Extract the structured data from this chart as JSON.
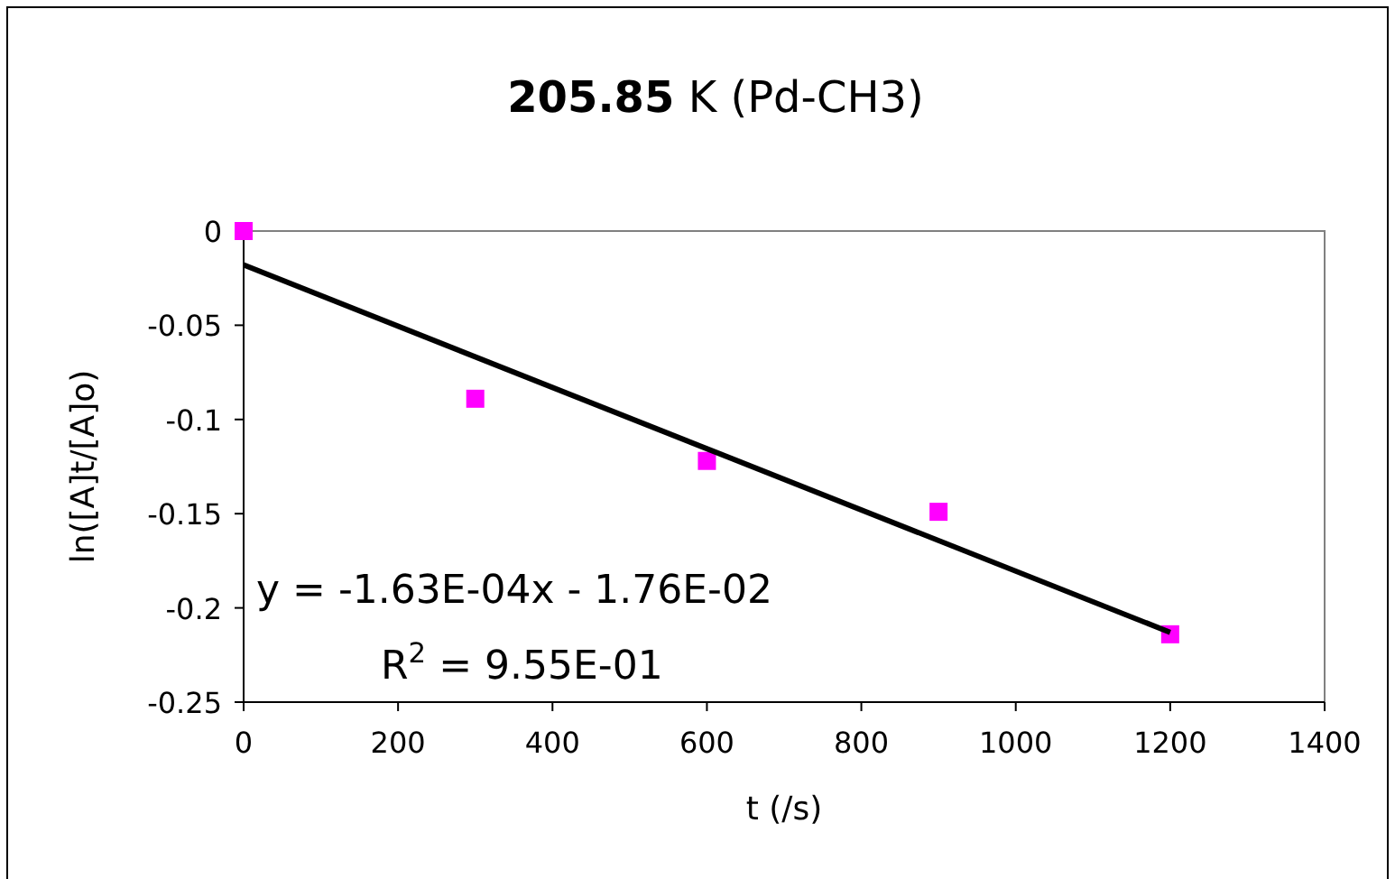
{
  "chart_data": {
    "type": "scatter",
    "title": "205.85 K (Pd-CH3)",
    "xlabel": "t (/s)",
    "ylabel": "ln([A]t/[A]o)",
    "x": [
      0,
      300,
      600,
      900,
      1200
    ],
    "series": [
      {
        "color": "#ff00ff",
        "marker": "square",
        "values": [
          0,
          -0.089,
          -0.122,
          -0.149,
          -0.214
        ]
      },
      {
        "type": "line",
        "color": "#000000",
        "marker": "none",
        "x": [
          0,
          1200
        ],
        "values": [
          -0.018,
          -0.213
        ]
      }
    ],
    "xlim": [
      0,
      1400
    ],
    "xticks": [
      0,
      200,
      400,
      600,
      800,
      1000,
      1200,
      1400
    ],
    "ylim": [
      -0.25,
      0
    ],
    "yticks": [
      {
        "value": -0.25,
        "label": "-0.25"
      },
      {
        "value": -0.2,
        "label": "-0.2"
      },
      {
        "value": -0.15,
        "label": "-0.15"
      },
      {
        "value": -0.1,
        "label": "-0.1"
      },
      {
        "value": -0.05,
        "label": "-0.05"
      },
      0
    ],
    "annotations": [
      "y = -1.63E-04x - 1.76E-02",
      "R$^{2}$ = 9.55E-01"
    ],
    "grid": false
  }
}
